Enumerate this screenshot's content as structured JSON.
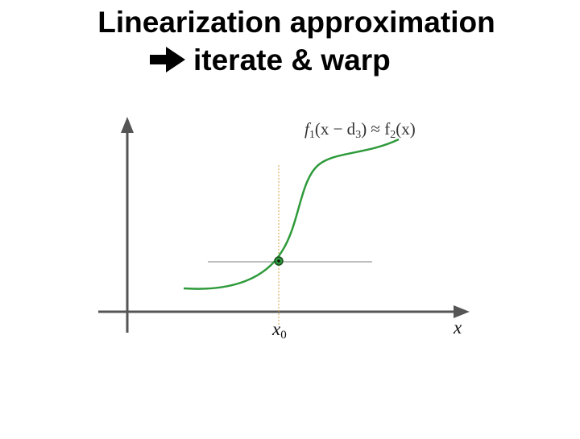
{
  "title": {
    "line1": "Linearization approximation",
    "line2": "iterate & warp"
  },
  "diagram": {
    "formula": [
      "f",
      "1",
      "(x − d",
      "3",
      ") ≈ f",
      "2",
      "(x)"
    ],
    "x0": [
      "x",
      "0"
    ],
    "x_axis": "x"
  }
}
